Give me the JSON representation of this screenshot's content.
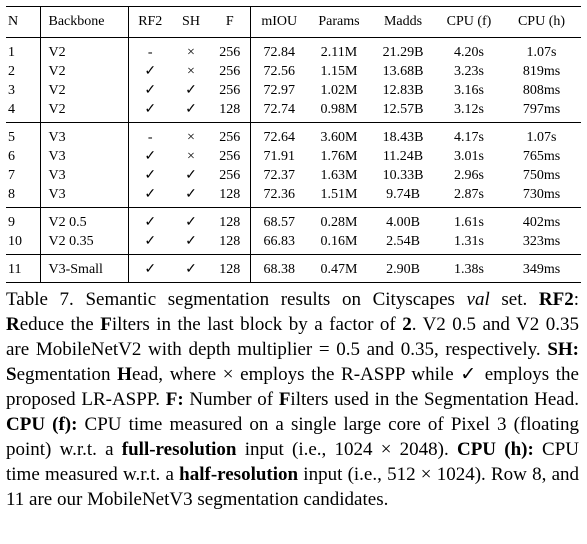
{
  "table": {
    "header": [
      "N",
      "Backbone",
      "RF2",
      "SH",
      "F",
      "mIOU",
      "Params",
      "Madds",
      "CPU (f)",
      "CPU (h)"
    ],
    "groups": [
      [
        [
          "1",
          "V2",
          "-",
          "×",
          "256",
          "72.84",
          "2.11M",
          "21.29B",
          "4.20s",
          "1.07s"
        ],
        [
          "2",
          "V2",
          "✓",
          "×",
          "256",
          "72.56",
          "1.15M",
          "13.68B",
          "3.23s",
          "819ms"
        ],
        [
          "3",
          "V2",
          "✓",
          "✓",
          "256",
          "72.97",
          "1.02M",
          "12.83B",
          "3.16s",
          "808ms"
        ],
        [
          "4",
          "V2",
          "✓",
          "✓",
          "128",
          "72.74",
          "0.98M",
          "12.57B",
          "3.12s",
          "797ms"
        ]
      ],
      [
        [
          "5",
          "V3",
          "-",
          "×",
          "256",
          "72.64",
          "3.60M",
          "18.43B",
          "4.17s",
          "1.07s"
        ],
        [
          "6",
          "V3",
          "✓",
          "×",
          "256",
          "71.91",
          "1.76M",
          "11.24B",
          "3.01s",
          "765ms"
        ],
        [
          "7",
          "V3",
          "✓",
          "✓",
          "256",
          "72.37",
          "1.63M",
          "10.33B",
          "2.96s",
          "750ms"
        ],
        [
          "8",
          "V3",
          "✓",
          "✓",
          "128",
          "72.36",
          "1.51M",
          "9.74B",
          "2.87s",
          "730ms"
        ]
      ],
      [
        [
          "9",
          "V2 0.5",
          "✓",
          "✓",
          "128",
          "68.57",
          "0.28M",
          "4.00B",
          "1.61s",
          "402ms"
        ],
        [
          "10",
          "V2 0.35",
          "✓",
          "✓",
          "128",
          "66.83",
          "0.16M",
          "2.54B",
          "1.31s",
          "323ms"
        ]
      ],
      [
        [
          "11",
          "V3-Small",
          "✓",
          "✓",
          "128",
          "68.38",
          "0.47M",
          "2.90B",
          "1.38s",
          "349ms"
        ]
      ]
    ]
  },
  "caption": {
    "runs": [
      {
        "text": "Table 7. Semantic segmentation results on Cityscapes "
      },
      {
        "text": "val",
        "style": "italic"
      },
      {
        "text": " set. "
      },
      {
        "text": "RF2",
        "style": "bold"
      },
      {
        "text": ": "
      },
      {
        "text": "R",
        "style": "bold"
      },
      {
        "text": "educe the "
      },
      {
        "text": "F",
        "style": "bold"
      },
      {
        "text": "ilters in the last block by a factor of "
      },
      {
        "text": "2",
        "style": "bold"
      },
      {
        "text": ". V2 0.5 and V2 0.35 are MobileNetV2 with depth multiplier = 0.5 and 0.35, respectively. "
      },
      {
        "text": "SH:",
        "style": "bold"
      },
      {
        "text": " "
      },
      {
        "text": "S",
        "style": "bold"
      },
      {
        "text": "egmentation "
      },
      {
        "text": "H",
        "style": "bold"
      },
      {
        "text": "ead, where × employs the R-ASPP while ✓ employs the proposed LR-ASPP. "
      },
      {
        "text": "F:",
        "style": "bold"
      },
      {
        "text": " Number of "
      },
      {
        "text": "F",
        "style": "bold"
      },
      {
        "text": "ilters used in the Segmentation Head. "
      },
      {
        "text": "CPU (f):",
        "style": "bold"
      },
      {
        "text": " CPU time measured on a single large core of Pixel 3 (floating point) w.r.t. a "
      },
      {
        "text": "full-resolution",
        "style": "bold"
      },
      {
        "text": " input (i.e., 1024 × 2048). "
      },
      {
        "text": "CPU (h):",
        "style": "bold"
      },
      {
        "text": " CPU time measured w.r.t. a "
      },
      {
        "text": "half-resolution",
        "style": "bold"
      },
      {
        "text": " input (i.e., 512 × 1024). Row 8, and 11 are our MobileNetV3 segmentation candidates."
      }
    ]
  }
}
